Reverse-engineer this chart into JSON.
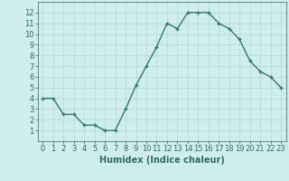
{
  "x": [
    0,
    1,
    2,
    3,
    4,
    5,
    6,
    7,
    8,
    9,
    10,
    11,
    12,
    13,
    14,
    15,
    16,
    17,
    18,
    19,
    20,
    21,
    22,
    23
  ],
  "y": [
    4,
    4,
    2.5,
    2.5,
    1.5,
    1.5,
    1,
    1,
    3,
    5.2,
    7,
    8.8,
    11,
    10.5,
    12,
    12,
    12,
    11,
    10.5,
    9.5,
    7.5,
    6.5,
    6,
    5
  ],
  "line_color": "#2e7d6e",
  "marker": "+",
  "bg_color": "#d0eded",
  "grid_color": "#b8d4d4",
  "xlabel": "Humidex (Indice chaleur)",
  "ylim": [
    0,
    13
  ],
  "xlim": [
    -0.5,
    23.5
  ],
  "yticks": [
    1,
    2,
    3,
    4,
    5,
    6,
    7,
    8,
    9,
    10,
    11,
    12
  ],
  "xticks": [
    0,
    1,
    2,
    3,
    4,
    5,
    6,
    7,
    8,
    9,
    10,
    11,
    12,
    13,
    14,
    15,
    16,
    17,
    18,
    19,
    20,
    21,
    22,
    23
  ],
  "tick_label_color": "#2e6e60",
  "xlabel_color": "#2e6e60",
  "xlabel_fontsize": 7,
  "tick_fontsize": 6,
  "linewidth": 1.0,
  "markersize": 3,
  "markeredgewidth": 1.0
}
